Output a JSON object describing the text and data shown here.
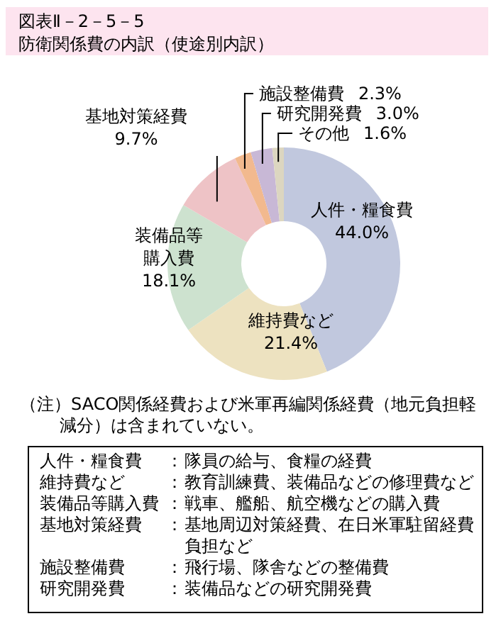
{
  "chart_data": {
    "type": "donut",
    "title": "図表Ⅱ－2－5－5",
    "subtitle": "防衛関係費の内訳（使途別内訳）",
    "categories": [
      "人件・糧食費",
      "維持費など",
      "装備品等購入費",
      "基地対策経費",
      "施設整備費",
      "研究開発費",
      "その他"
    ],
    "values": [
      44.0,
      21.4,
      18.1,
      9.7,
      2.3,
      3.0,
      1.6
    ],
    "value_labels": [
      "44.0%",
      "21.4%",
      "18.1%",
      "9.7%",
      "2.3%",
      "3.0%",
      "1.6%"
    ],
    "colors": [
      "#c1c8de",
      "#ede2c0",
      "#cde2cf",
      "#eec3c6",
      "#f2b98e",
      "#c8b8d6",
      "#dcd6c0"
    ],
    "annotations": [
      "（注）SACO関係経費および米軍再編関係経費（地元負担軽減分）は含まれていない。",
      "人件・糧食費：隊員の給与、食糧の経費",
      "維持費など：教育訓練費、装備品などの修理費など",
      "装備品等購入費：戦車、艦船、航空機などの購入費",
      "基地対策経費：基地周辺対策経費、在日米軍駐留経費負担など",
      "施設整備費：飛行場、隊舎などの整備費",
      "研究開発費：装備品などの研究開発費"
    ]
  }
}
